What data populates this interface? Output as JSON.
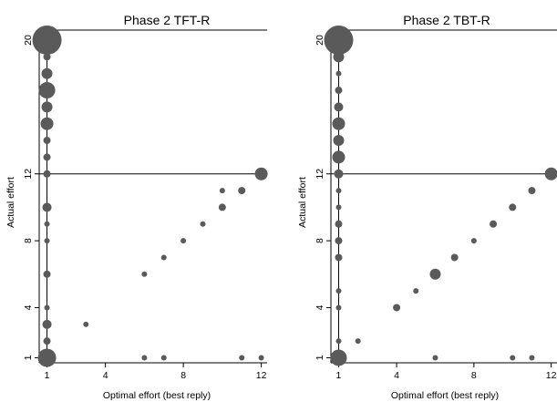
{
  "chart_data": [
    {
      "type": "scatter",
      "title": "Phase 2 TFT-R",
      "xlabel": "Optimal effort (best reply)",
      "ylabel": "Actual effort",
      "xlim": [
        0.6,
        12.3
      ],
      "ylim": [
        0.7,
        20.6
      ],
      "xticks": [
        1,
        4,
        8,
        12
      ],
      "yticks": [
        1,
        4,
        8,
        12,
        20
      ],
      "reference_lines": {
        "y": 12,
        "x": 1
      },
      "grid": false,
      "color": "#5a5a5a",
      "points": [
        {
          "x": 1,
          "y": 20,
          "size": 16
        },
        {
          "x": 1,
          "y": 19,
          "size": 4
        },
        {
          "x": 1,
          "y": 18,
          "size": 6
        },
        {
          "x": 1,
          "y": 17,
          "size": 9
        },
        {
          "x": 1,
          "y": 16,
          "size": 6
        },
        {
          "x": 1,
          "y": 15,
          "size": 7
        },
        {
          "x": 1,
          "y": 14,
          "size": 4
        },
        {
          "x": 1,
          "y": 13,
          "size": 4
        },
        {
          "x": 1,
          "y": 12,
          "size": 4
        },
        {
          "x": 1,
          "y": 10,
          "size": 5
        },
        {
          "x": 1,
          "y": 9,
          "size": 3
        },
        {
          "x": 1,
          "y": 8,
          "size": 3
        },
        {
          "x": 1,
          "y": 6,
          "size": 4
        },
        {
          "x": 1,
          "y": 4,
          "size": 3
        },
        {
          "x": 1,
          "y": 3,
          "size": 5
        },
        {
          "x": 1,
          "y": 2,
          "size": 4
        },
        {
          "x": 1,
          "y": 1,
          "size": 10
        },
        {
          "x": 3,
          "y": 3,
          "size": 3
        },
        {
          "x": 6,
          "y": 6,
          "size": 3
        },
        {
          "x": 6,
          "y": 1,
          "size": 3
        },
        {
          "x": 7,
          "y": 7,
          "size": 3
        },
        {
          "x": 7,
          "y": 1,
          "size": 3
        },
        {
          "x": 8,
          "y": 8,
          "size": 3
        },
        {
          "x": 9,
          "y": 9,
          "size": 3
        },
        {
          "x": 10,
          "y": 11,
          "size": 3
        },
        {
          "x": 10,
          "y": 10,
          "size": 4
        },
        {
          "x": 11,
          "y": 11,
          "size": 4
        },
        {
          "x": 11,
          "y": 1,
          "size": 3
        },
        {
          "x": 12,
          "y": 12,
          "size": 7
        },
        {
          "x": 12,
          "y": 1,
          "size": 3
        }
      ]
    },
    {
      "type": "scatter",
      "title": "Phase 2 TBT-R",
      "xlabel": "Optimal effort (best reply)",
      "ylabel": "Actual effort",
      "xlim": [
        0.6,
        12.3
      ],
      "ylim": [
        0.7,
        20.6
      ],
      "xticks": [
        1,
        4,
        8,
        12
      ],
      "yticks": [
        1,
        4,
        8,
        12,
        20
      ],
      "reference_lines": {
        "y": 12,
        "x": 1
      },
      "grid": false,
      "color": "#5a5a5a",
      "points": [
        {
          "x": 1,
          "y": 20,
          "size": 16
        },
        {
          "x": 1,
          "y": 19,
          "size": 6
        },
        {
          "x": 1,
          "y": 18,
          "size": 3
        },
        {
          "x": 1,
          "y": 17,
          "size": 4
        },
        {
          "x": 1,
          "y": 16,
          "size": 5
        },
        {
          "x": 1,
          "y": 15,
          "size": 7
        },
        {
          "x": 1,
          "y": 14,
          "size": 6
        },
        {
          "x": 1,
          "y": 13,
          "size": 7
        },
        {
          "x": 1,
          "y": 12,
          "size": 5
        },
        {
          "x": 1,
          "y": 11,
          "size": 3
        },
        {
          "x": 1,
          "y": 10,
          "size": 3
        },
        {
          "x": 1,
          "y": 9,
          "size": 4
        },
        {
          "x": 1,
          "y": 8,
          "size": 4
        },
        {
          "x": 1,
          "y": 7,
          "size": 4
        },
        {
          "x": 1,
          "y": 5,
          "size": 3
        },
        {
          "x": 1,
          "y": 4,
          "size": 3
        },
        {
          "x": 1,
          "y": 2,
          "size": 3
        },
        {
          "x": 1,
          "y": 1,
          "size": 9
        },
        {
          "x": 2,
          "y": 2,
          "size": 3
        },
        {
          "x": 4,
          "y": 4,
          "size": 4
        },
        {
          "x": 5,
          "y": 5,
          "size": 3
        },
        {
          "x": 6,
          "y": 6,
          "size": 6
        },
        {
          "x": 6,
          "y": 1,
          "size": 3
        },
        {
          "x": 7,
          "y": 7,
          "size": 4
        },
        {
          "x": 8,
          "y": 8,
          "size": 3
        },
        {
          "x": 9,
          "y": 9,
          "size": 4
        },
        {
          "x": 10,
          "y": 10,
          "size": 4
        },
        {
          "x": 10,
          "y": 1,
          "size": 3
        },
        {
          "x": 11,
          "y": 11,
          "size": 4
        },
        {
          "x": 11,
          "y": 1,
          "size": 3
        },
        {
          "x": 12,
          "y": 12,
          "size": 7
        }
      ]
    }
  ]
}
